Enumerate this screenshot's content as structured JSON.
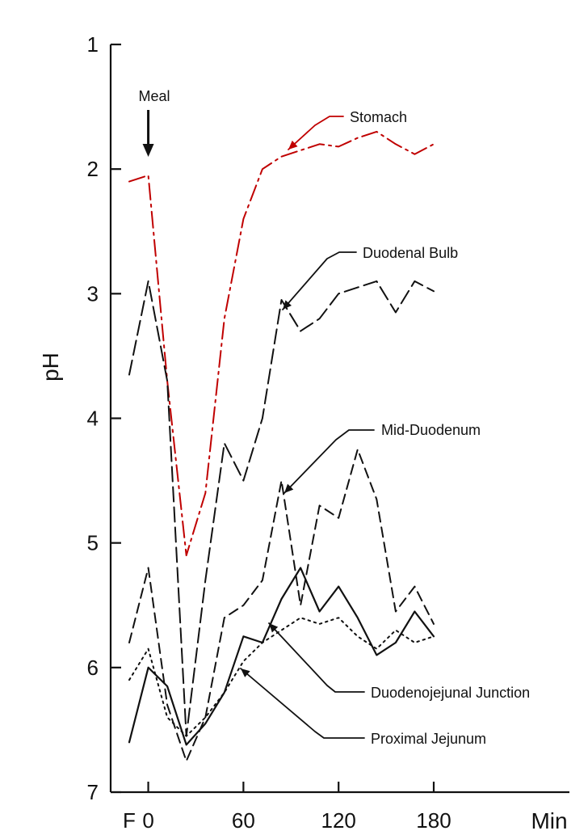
{
  "chart_data": {
    "type": "line",
    "title": "",
    "xlabel": "Min",
    "ylabel": "pH",
    "xlim": [
      -15,
      200
    ],
    "ylim": [
      1,
      7
    ],
    "y_inverted": true,
    "x_ticks": [
      {
        "value": -12,
        "label": "F"
      },
      {
        "value": 0,
        "label": "0"
      },
      {
        "value": 60,
        "label": "60"
      },
      {
        "value": 120,
        "label": "120"
      },
      {
        "value": 180,
        "label": "180"
      }
    ],
    "y_ticks": [
      1,
      2,
      3,
      4,
      5,
      6,
      7
    ],
    "grid": false,
    "legend": "none",
    "annotations": [
      {
        "text": "Meal",
        "x": 0,
        "y": 1.75
      }
    ],
    "series": [
      {
        "name": "Stomach",
        "color": "#c00000",
        "dash": "dashdot",
        "x": [
          -12,
          0,
          12,
          24,
          36,
          48,
          60,
          72,
          84,
          96,
          108,
          120,
          132,
          144,
          156,
          168,
          180
        ],
        "y": [
          2.1,
          2.05,
          3.7,
          5.1,
          4.6,
          3.2,
          2.4,
          2.0,
          1.9,
          1.85,
          1.8,
          1.82,
          1.75,
          1.7,
          1.8,
          1.88,
          1.8
        ]
      },
      {
        "name": "Duodenal Bulb",
        "color": "#111111",
        "dash": "longdash",
        "x": [
          -12,
          0,
          12,
          24,
          36,
          48,
          60,
          72,
          84,
          96,
          108,
          120,
          132,
          144,
          156,
          168,
          180
        ],
        "y": [
          3.65,
          2.9,
          3.7,
          6.55,
          5.3,
          4.2,
          4.5,
          4.0,
          3.05,
          3.3,
          3.2,
          3.0,
          2.95,
          2.9,
          3.15,
          2.9,
          2.98
        ]
      },
      {
        "name": "Mid-Duodenum",
        "color": "#111111",
        "dash": "dash",
        "x": [
          -12,
          0,
          12,
          24,
          36,
          48,
          60,
          72,
          84,
          96,
          108,
          120,
          132,
          144,
          156,
          168,
          180
        ],
        "y": [
          5.8,
          5.2,
          6.3,
          6.75,
          6.4,
          5.6,
          5.5,
          5.3,
          4.5,
          5.5,
          4.7,
          4.8,
          4.25,
          4.65,
          5.55,
          5.35,
          5.65
        ]
      },
      {
        "name": "Duodenojejunal Junction",
        "color": "#111111",
        "dash": "solid",
        "x": [
          -12,
          0,
          12,
          24,
          36,
          48,
          60,
          72,
          84,
          96,
          108,
          120,
          132,
          144,
          156,
          168,
          180
        ],
        "y": [
          6.6,
          6.0,
          6.15,
          6.62,
          6.45,
          6.2,
          5.75,
          5.8,
          5.45,
          5.2,
          5.55,
          5.35,
          5.6,
          5.9,
          5.8,
          5.55,
          5.75
        ]
      },
      {
        "name": "Proximal Jejunum",
        "color": "#111111",
        "dash": "dotted",
        "x": [
          -12,
          0,
          12,
          24,
          36,
          48,
          60,
          72,
          84,
          96,
          108,
          120,
          132,
          144,
          156,
          168,
          180
        ],
        "y": [
          6.1,
          5.85,
          6.4,
          6.55,
          6.4,
          6.2,
          5.95,
          5.8,
          5.7,
          5.6,
          5.65,
          5.6,
          5.75,
          5.85,
          5.7,
          5.8,
          5.75
        ]
      }
    ]
  }
}
